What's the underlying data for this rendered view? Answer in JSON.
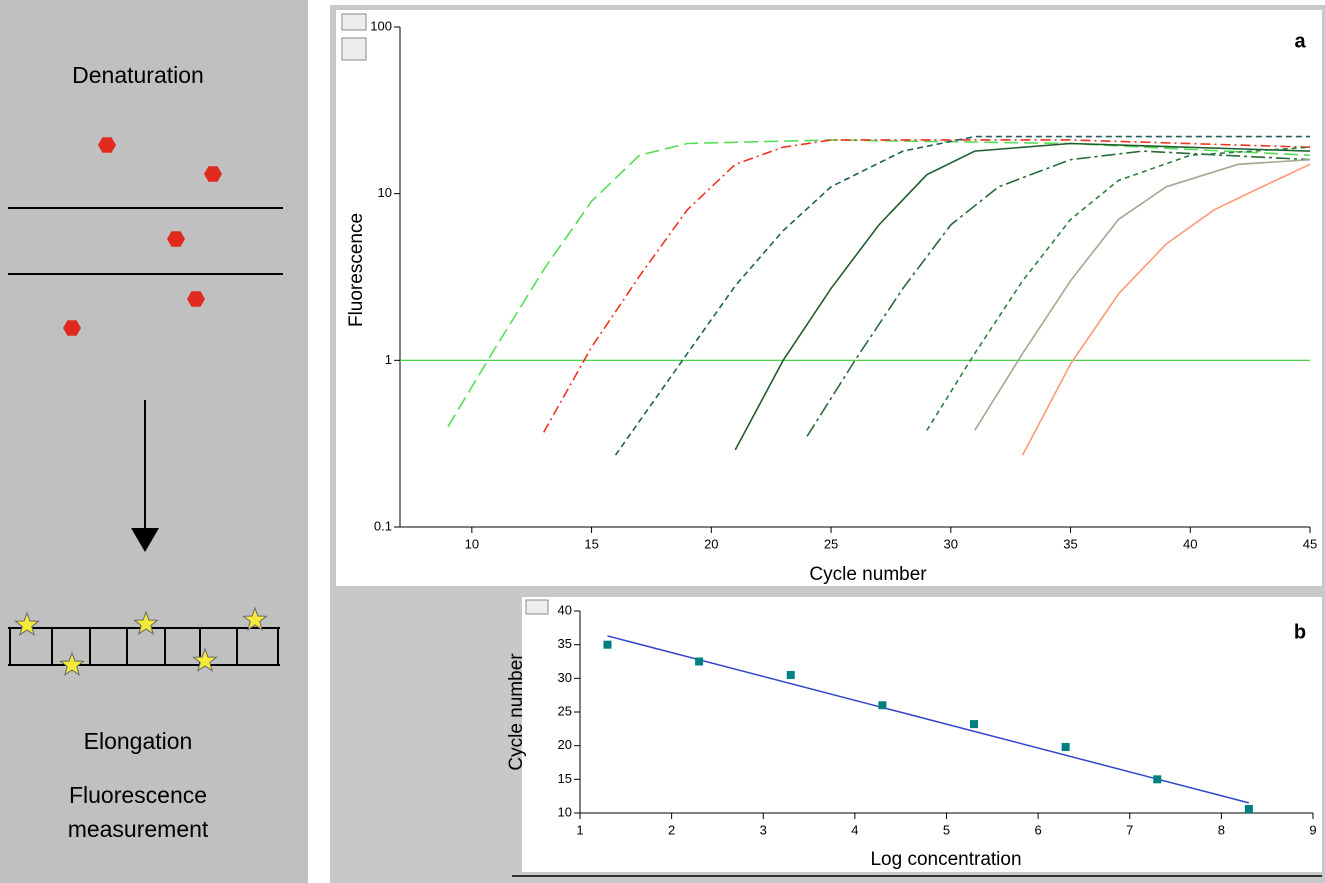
{
  "diagram": {
    "top_label": "Denaturation",
    "bottom_labels": [
      "Elongation",
      "Fluorescence",
      "measurement"
    ]
  },
  "chart_data": [
    {
      "type": "line",
      "label": "a",
      "x_label": "Cycle number",
      "y_label": "Fluorescence",
      "log_y": true,
      "xlim": [
        7,
        45
      ],
      "xticks": [
        10,
        15,
        20,
        25,
        30,
        35,
        40,
        45
      ],
      "ylim": [
        0.1,
        100
      ],
      "yticks": [
        0.1,
        1,
        10,
        100
      ],
      "threshold": 1,
      "threshold_color": "#33cc33",
      "series": [
        {
          "color": "#55dd55",
          "dash": "14 6",
          "x": [
            9,
            11,
            13,
            15,
            17,
            19,
            25,
            35,
            45
          ],
          "values": [
            0.4,
            1.2,
            3.5,
            9,
            17,
            20,
            21,
            20,
            17
          ]
        },
        {
          "color": "#ee3322",
          "dash": "10 4 2 4",
          "x": [
            13,
            15,
            17,
            19,
            21,
            23,
            25,
            35,
            45
          ],
          "values": [
            0.37,
            1.2,
            3.2,
            8,
            15,
            19,
            21,
            21,
            19
          ]
        },
        {
          "color": "#1f5f5f",
          "dash": "6 4",
          "x": [
            16,
            19,
            21,
            23,
            25,
            28,
            31,
            45
          ],
          "values": [
            0.27,
            1.1,
            2.8,
            6,
            11,
            18,
            22,
            22
          ]
        },
        {
          "color": "#1e5e2e",
          "dash": "",
          "x": [
            21,
            23,
            25,
            27,
            29,
            31,
            35,
            45
          ],
          "values": [
            0.29,
            1.0,
            2.7,
            6.5,
            13,
            18,
            20,
            18
          ]
        },
        {
          "color": "#2a6a3a",
          "dash": "14 4 3 4",
          "x": [
            24,
            26,
            28,
            30,
            32,
            35,
            38,
            45
          ],
          "values": [
            0.35,
            1.0,
            2.7,
            6.5,
            11,
            16,
            18,
            16
          ]
        },
        {
          "color": "#2e7e3e",
          "dash": "5 4",
          "x": [
            29,
            31,
            33,
            35,
            37,
            40,
            45
          ],
          "values": [
            0.38,
            1.1,
            3,
            7,
            12,
            17,
            19
          ]
        },
        {
          "color": "#a0a890",
          "dash": "",
          "x": [
            31,
            33,
            35,
            37,
            39,
            42,
            45
          ],
          "values": [
            0.38,
            1.1,
            3,
            7,
            11,
            15,
            16
          ]
        },
        {
          "color": "#ff9977",
          "dash": "",
          "x": [
            33,
            35,
            37,
            39,
            41,
            43,
            45
          ],
          "values": [
            0.27,
            0.95,
            2.5,
            5,
            8,
            11,
            15
          ]
        }
      ]
    },
    {
      "type": "scatter",
      "label": "b",
      "x_label": "Log concentration",
      "y_label": "Cycle number",
      "xlim": [
        1,
        9
      ],
      "xticks": [
        1,
        2,
        3,
        4,
        5,
        6,
        7,
        8,
        9
      ],
      "ylim": [
        10,
        40
      ],
      "yticks": [
        10,
        15,
        20,
        25,
        30,
        35,
        40
      ],
      "color": "#008080",
      "fit_color": "#3344cc",
      "x": [
        1.3,
        2.3,
        3.3,
        4.3,
        5.3,
        6.3,
        7.3,
        8.3
      ],
      "values": [
        35,
        32.5,
        30.5,
        26,
        23.2,
        19.8,
        15,
        10.6
      ],
      "fit": {
        "x": [
          1.3,
          8.3
        ],
        "values": [
          36.3,
          11.5
        ]
      }
    }
  ]
}
